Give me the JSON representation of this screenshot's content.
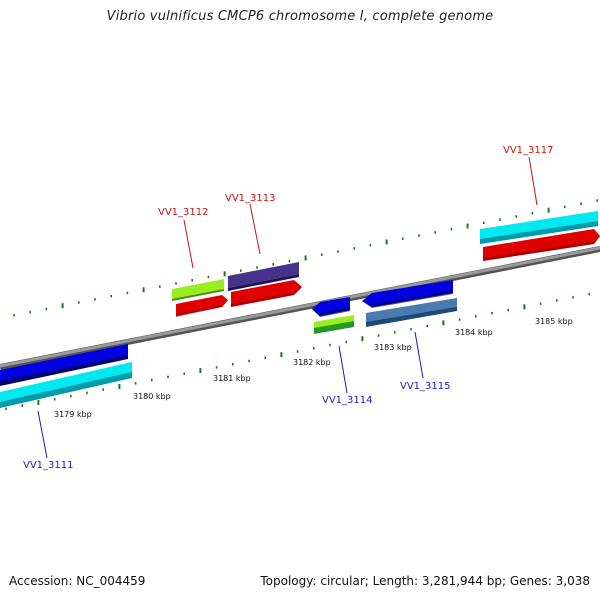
{
  "title": "Vibrio vulnificus CMCP6 chromosome I, complete genome",
  "ticks": [
    {
      "label": "3179 kbp"
    },
    {
      "label": "3180 kbp"
    },
    {
      "label": "3181 kbp"
    },
    {
      "label": "3182 kbp"
    },
    {
      "label": "3183 kbp"
    },
    {
      "label": "3184 kbp"
    },
    {
      "label": "3185 kbp"
    }
  ],
  "genes": [
    {
      "label": "VV1_3111",
      "strand": "reverse",
      "color": "#0000cc"
    },
    {
      "label": "VV1_3112",
      "strand": "forward",
      "color": "#cc0000"
    },
    {
      "label": "VV1_3113",
      "strand": "forward",
      "color": "#cc0000"
    },
    {
      "label": "VV1_3114",
      "strand": "reverse",
      "color": "#0000cc"
    },
    {
      "label": "VV1_3115",
      "strand": "reverse",
      "color": "#0000cc"
    },
    {
      "label": "VV1_3117",
      "strand": "forward",
      "color": "#cc0000"
    }
  ],
  "footer": {
    "accession": "Accession: NC_004459",
    "summary": "Topology: circular; Length: 3,281,944 bp; Genes: 3,038"
  },
  "colors": {
    "backbone": "#7a7a7a",
    "tick": "#1a7a1a",
    "cds_forward": "#e00000",
    "cds_reverse": "#0000e0",
    "feature_cyan": "#00e8f0",
    "feature_lime": "#99ee22",
    "feature_purple": "#443388",
    "feature_steelblue": "#4a7ab0",
    "feature_green": "#229922"
  }
}
